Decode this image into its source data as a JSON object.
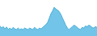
{
  "chart_data": {
    "type": "area",
    "series": [
      {
        "type": "area",
        "color": "#72c4e8",
        "values": [
          28,
          22,
          26,
          20,
          25,
          18,
          22,
          18,
          24,
          20,
          18,
          22,
          18,
          20,
          18,
          22,
          20,
          18,
          22,
          20,
          18,
          24,
          20,
          18,
          22,
          20,
          24,
          28,
          32,
          38,
          50,
          62,
          70,
          80,
          75,
          72,
          68,
          60,
          50,
          40,
          30,
          22,
          18,
          22,
          26,
          30,
          28,
          24,
          20,
          18,
          24,
          22,
          28,
          26,
          30,
          28,
          24,
          22,
          26,
          24
        ]
      },
      {
        "type": "line",
        "color": "#4bafd6",
        "values": [
          28,
          22,
          26,
          20,
          25,
          18,
          22,
          18,
          24,
          20,
          18,
          22,
          18,
          20,
          18,
          22,
          20,
          18,
          22,
          20,
          18,
          24,
          20,
          18,
          22,
          20,
          24,
          28,
          32,
          38,
          50,
          62,
          70,
          80,
          75,
          72,
          68,
          60,
          50,
          40,
          30,
          22,
          18,
          22,
          26,
          30,
          28,
          24,
          20,
          18,
          24,
          22,
          28,
          26,
          30,
          28,
          24,
          22,
          26,
          24
        ]
      }
    ],
    "ylim": [
      0,
      100
    ],
    "tick_labels": false
  }
}
